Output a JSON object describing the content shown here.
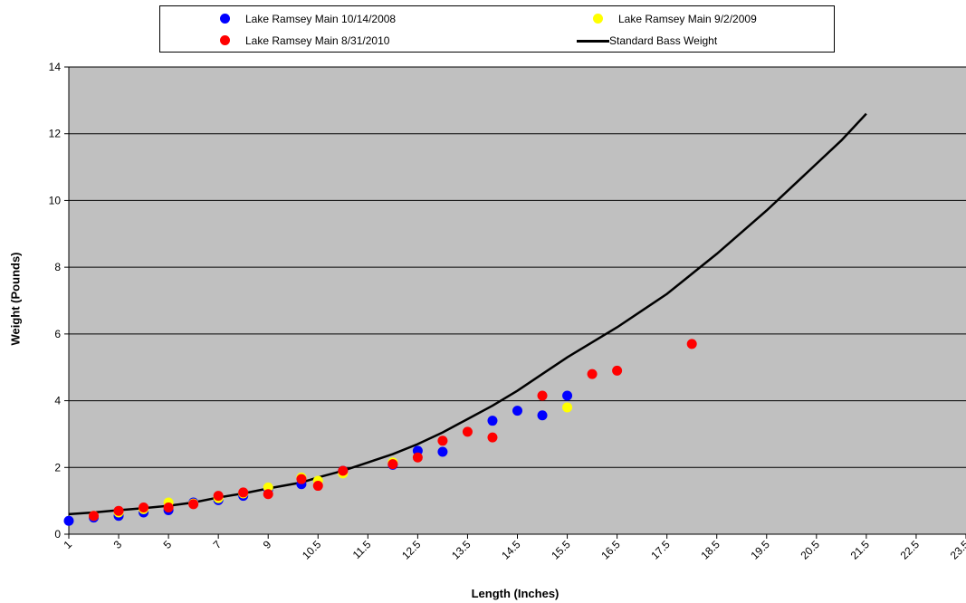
{
  "chart_data": {
    "type": "scatter",
    "xlabel": "Length (Inches)",
    "ylabel": "Weight (Pounds)",
    "ylim": [
      0,
      14
    ],
    "y_ticks": [
      "0",
      "2",
      "4",
      "6",
      "8",
      "10",
      "12",
      "14"
    ],
    "x_ticks": [
      "1",
      "3",
      "5",
      "7",
      "9",
      "10.5",
      "11.5",
      "12.5",
      "13.5",
      "14.5",
      "15.5",
      "16.5",
      "17.5",
      "18.5",
      "19.5",
      "20.5",
      "21.5",
      "22.5",
      "23.5"
    ],
    "grid": "horizontal",
    "plot_background": "#c0c0c0",
    "legend_position": "top-center",
    "series": [
      {
        "name": "Lake Ramsey Main 10/14/2008",
        "kind": "scatter",
        "color": "#0000ff",
        "points": [
          [
            1,
            0.4
          ],
          [
            2,
            0.5
          ],
          [
            3,
            0.55
          ],
          [
            4,
            0.65
          ],
          [
            5,
            0.72
          ],
          [
            6,
            0.95
          ],
          [
            7,
            1.02
          ],
          [
            8,
            1.15
          ],
          [
            9,
            1.35
          ],
          [
            10,
            1.5
          ],
          [
            11,
            1.9
          ],
          [
            12,
            2.08
          ],
          [
            12.5,
            2.5
          ],
          [
            13,
            2.47
          ],
          [
            14,
            3.4
          ],
          [
            14.5,
            3.7
          ],
          [
            15,
            3.56
          ],
          [
            15.5,
            4.15
          ]
        ]
      },
      {
        "name": "Lake Ramsey Main 9/2/2009",
        "kind": "scatter",
        "color": "#ffff00",
        "points": [
          [
            2,
            0.55
          ],
          [
            3,
            0.65
          ],
          [
            4,
            0.75
          ],
          [
            5,
            0.95
          ],
          [
            6,
            0.92
          ],
          [
            7,
            1.08
          ],
          [
            8,
            1.22
          ],
          [
            9,
            1.4
          ],
          [
            10,
            1.7
          ],
          [
            10.5,
            1.6
          ],
          [
            11,
            1.82
          ],
          [
            12,
            2.15
          ],
          [
            15.5,
            3.8
          ]
        ]
      },
      {
        "name": "Lake Ramsey Main 8/31/2010",
        "kind": "scatter",
        "color": "#ff0000",
        "points": [
          [
            2,
            0.55
          ],
          [
            3,
            0.7
          ],
          [
            4,
            0.8
          ],
          [
            5,
            0.8
          ],
          [
            6,
            0.9
          ],
          [
            7,
            1.15
          ],
          [
            8,
            1.25
          ],
          [
            9,
            1.2
          ],
          [
            10,
            1.65
          ],
          [
            10.5,
            1.45
          ],
          [
            11,
            1.9
          ],
          [
            12,
            2.1
          ],
          [
            12.5,
            2.3
          ],
          [
            13,
            2.8
          ],
          [
            13.5,
            3.07
          ],
          [
            14,
            2.9
          ],
          [
            15,
            4.15
          ],
          [
            16,
            4.8
          ],
          [
            16.5,
            4.9
          ],
          [
            18,
            5.7
          ]
        ]
      },
      {
        "name": "Standard Bass Weight",
        "kind": "line",
        "color": "#000000",
        "points": [
          [
            1,
            0.6
          ],
          [
            2,
            0.65
          ],
          [
            3,
            0.72
          ],
          [
            4,
            0.78
          ],
          [
            5,
            0.85
          ],
          [
            6,
            0.95
          ],
          [
            7,
            1.1
          ],
          [
            8,
            1.22
          ],
          [
            9,
            1.37
          ],
          [
            10,
            1.55
          ],
          [
            10.5,
            1.7
          ],
          [
            11,
            1.9
          ],
          [
            11.5,
            2.15
          ],
          [
            12,
            2.4
          ],
          [
            12.5,
            2.7
          ],
          [
            13,
            3.05
          ],
          [
            13.5,
            3.45
          ],
          [
            14,
            3.85
          ],
          [
            14.5,
            4.3
          ],
          [
            15,
            4.8
          ],
          [
            15.5,
            5.3
          ],
          [
            16,
            5.75
          ],
          [
            16.5,
            6.2
          ],
          [
            17,
            6.7
          ],
          [
            17.5,
            7.2
          ],
          [
            18,
            7.8
          ],
          [
            18.5,
            8.4
          ],
          [
            19,
            9.05
          ],
          [
            19.5,
            9.7
          ],
          [
            20,
            10.4
          ],
          [
            20.5,
            11.1
          ],
          [
            21,
            11.8
          ],
          [
            21.5,
            12.6
          ]
        ]
      }
    ]
  }
}
